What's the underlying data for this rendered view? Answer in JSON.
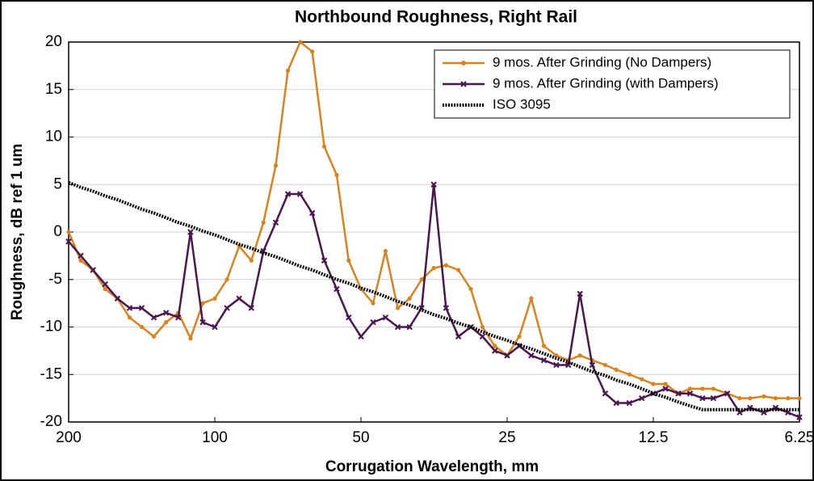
{
  "chart_data": {
    "type": "line",
    "title": "Northbound Roughness, Right Rail",
    "xlabel": "Corrugation Wavelength, mm",
    "ylabel": "Roughness, dB ref 1 um",
    "x": [
      200,
      188.8,
      178.2,
      168.2,
      158.7,
      149.8,
      141.4,
      133.5,
      126.0,
      118.9,
      112.2,
      105.9,
      100,
      94.4,
      89.1,
      84.1,
      79.4,
      74.9,
      70.7,
      66.7,
      63.0,
      59.5,
      56.1,
      53.0,
      50,
      47.2,
      44.5,
      42.0,
      39.7,
      37.5,
      35.4,
      33.4,
      31.5,
      29.7,
      28.1,
      26.5,
      25,
      23.6,
      22.3,
      21.0,
      19.8,
      18.7,
      17.7,
      16.7,
      15.7,
      14.9,
      14.0,
      13.2,
      12.5,
      11.8,
      11.1,
      10.5,
      9.9,
      9.4,
      8.8,
      8.3,
      7.9,
      7.4,
      7.0,
      6.6,
      6.25
    ],
    "series": [
      {
        "name": "9 mos. After Grinding (No Dampers)",
        "color": "#d9831f",
        "marker": "circle",
        "values": [
          0,
          -3,
          -4,
          -6,
          -7,
          -9,
          -10,
          -11,
          -9.5,
          -8.5,
          -11.2,
          -7.5,
          -7,
          -5,
          -1.5,
          -3,
          1,
          7,
          17,
          20,
          19,
          9,
          6,
          -3,
          -6,
          -7.5,
          -2,
          -8,
          -7,
          -5,
          -3.8,
          -3.5,
          -4,
          -6,
          -10,
          -12,
          -13,
          -11,
          -7,
          -12,
          -13,
          -13.5,
          -13,
          -13.5,
          -14,
          -14.5,
          -15,
          -15.5,
          -16,
          -16,
          -17,
          -16.5,
          -16.5,
          -16.5,
          -17,
          -17.5,
          -17.5,
          -17.3,
          -17.5,
          -17.5,
          -17.5
        ]
      },
      {
        "name": "9 mos. After Grinding (with Dampers)",
        "color": "#4b1650",
        "marker": "x",
        "values": [
          -1,
          -2.5,
          -4,
          -5.5,
          -7,
          -8,
          -8,
          -9,
          -8.5,
          -9,
          0,
          -9.5,
          -10,
          -8,
          -7,
          -8,
          -2,
          1,
          4,
          4,
          2,
          -3,
          -6,
          -9,
          -11,
          -9.5,
          -9,
          -10,
          -10,
          -8,
          5,
          -8,
          -11,
          -10,
          -11,
          -12.5,
          -13,
          -12,
          -13,
          -13.5,
          -14,
          -14,
          -6.5,
          -14,
          -17,
          -18,
          -18,
          -17.5,
          -17,
          -16.5,
          -17,
          -17,
          -17.5,
          -17.5,
          -17,
          -19,
          -18.5,
          -19,
          -18.5,
          -19,
          -19.5
        ]
      },
      {
        "name": "ISO 3095",
        "color": "#000000",
        "marker": "none",
        "dashed": true,
        "values": [
          5.2,
          4.7,
          4.3,
          3.8,
          3.4,
          2.9,
          2.4,
          2.0,
          1.5,
          1.0,
          0.6,
          0.1,
          -0.3,
          -0.8,
          -1.3,
          -1.7,
          -2.2,
          -2.6,
          -3.1,
          -3.6,
          -4.0,
          -4.5,
          -5.0,
          -5.4,
          -5.9,
          -6.3,
          -6.8,
          -7.3,
          -7.7,
          -8.2,
          -8.7,
          -9.1,
          -9.6,
          -10.0,
          -10.5,
          -11.0,
          -11.4,
          -11.9,
          -12.3,
          -12.8,
          -13.3,
          -13.7,
          -14.2,
          -14.7,
          -15.1,
          -15.6,
          -16.0,
          -16.5,
          -17.0,
          -17.4,
          -17.9,
          -18.3,
          -18.7,
          -18.7,
          -18.7,
          -18.7,
          -18.7,
          -18.7,
          -18.7,
          -18.7,
          -18.7
        ]
      }
    ],
    "xscale": "log",
    "xlim": [
      200,
      6.25
    ],
    "xticks": [
      200,
      100,
      50,
      25,
      12.5,
      6.25
    ],
    "ylim": [
      -20,
      20
    ],
    "yticks": [
      -20,
      -15,
      -10,
      -5,
      0,
      5,
      10,
      15,
      20
    ],
    "grid": true,
    "legend": "upper right"
  }
}
